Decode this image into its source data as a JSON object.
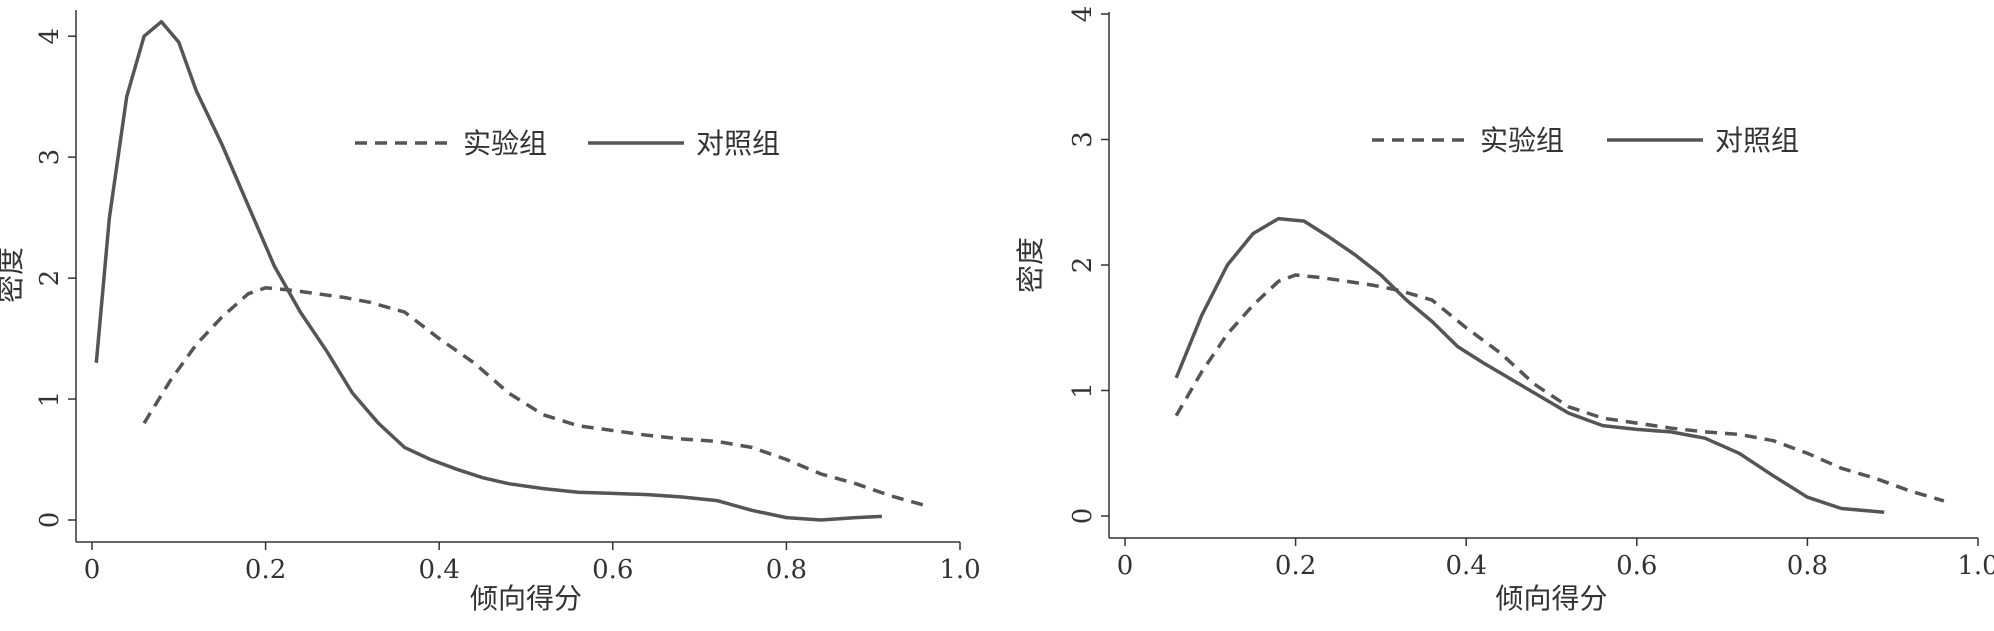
{
  "chart_data": [
    {
      "type": "line",
      "xlabel": "倾向得分",
      "ylabel": "密度",
      "xlim": [
        0,
        1.0
      ],
      "ylim": [
        0,
        4.2
      ],
      "xticks": [
        "0",
        "0.2",
        "0.4",
        "0.6",
        "0.8",
        "1.0"
      ],
      "yticks": [
        "0",
        "1",
        "2",
        "3",
        "4"
      ],
      "legend_position": "top-right",
      "grid": false,
      "series": [
        {
          "name": "实验组",
          "style": "dashed",
          "color": "#555555",
          "x": [
            0.06,
            0.09,
            0.12,
            0.15,
            0.18,
            0.2,
            0.23,
            0.26,
            0.29,
            0.32,
            0.36,
            0.4,
            0.44,
            0.48,
            0.52,
            0.56,
            0.6,
            0.64,
            0.68,
            0.72,
            0.76,
            0.8,
            0.84,
            0.88,
            0.92,
            0.96
          ],
          "y": [
            0.8,
            1.15,
            1.45,
            1.68,
            1.87,
            1.92,
            1.9,
            1.87,
            1.84,
            1.8,
            1.72,
            1.5,
            1.3,
            1.05,
            0.87,
            0.78,
            0.74,
            0.7,
            0.67,
            0.65,
            0.6,
            0.5,
            0.38,
            0.3,
            0.2,
            0.12
          ]
        },
        {
          "name": "对照组",
          "style": "solid",
          "color": "#555555",
          "x": [
            0.005,
            0.02,
            0.04,
            0.06,
            0.08,
            0.1,
            0.12,
            0.15,
            0.18,
            0.21,
            0.24,
            0.27,
            0.3,
            0.33,
            0.36,
            0.39,
            0.42,
            0.45,
            0.48,
            0.52,
            0.56,
            0.6,
            0.64,
            0.68,
            0.72,
            0.76,
            0.8,
            0.84,
            0.88,
            0.91
          ],
          "y": [
            1.3,
            2.5,
            3.5,
            4.0,
            4.12,
            3.95,
            3.55,
            3.1,
            2.6,
            2.1,
            1.72,
            1.4,
            1.05,
            0.8,
            0.6,
            0.5,
            0.42,
            0.35,
            0.3,
            0.26,
            0.23,
            0.22,
            0.21,
            0.19,
            0.16,
            0.08,
            0.02,
            0.0,
            0.02,
            0.03
          ]
        }
      ]
    },
    {
      "type": "line",
      "xlabel": "倾向得分",
      "ylabel": "密度",
      "xlim": [
        0,
        1.0
      ],
      "ylim": [
        0,
        4
      ],
      "xticks": [
        "0",
        "0.2",
        "0.4",
        "0.6",
        "0.8",
        "1.0"
      ],
      "yticks": [
        "0",
        "1",
        "2",
        "3",
        "4"
      ],
      "legend_position": "top-right",
      "grid": false,
      "series": [
        {
          "name": "实验组",
          "style": "dashed",
          "color": "#555555",
          "x": [
            0.06,
            0.09,
            0.12,
            0.15,
            0.18,
            0.2,
            0.23,
            0.26,
            0.29,
            0.32,
            0.36,
            0.4,
            0.44,
            0.48,
            0.52,
            0.56,
            0.6,
            0.64,
            0.68,
            0.72,
            0.76,
            0.8,
            0.84,
            0.88,
            0.92,
            0.96
          ],
          "y": [
            0.8,
            1.15,
            1.45,
            1.68,
            1.87,
            1.92,
            1.9,
            1.87,
            1.84,
            1.8,
            1.72,
            1.5,
            1.3,
            1.05,
            0.87,
            0.78,
            0.74,
            0.7,
            0.67,
            0.65,
            0.6,
            0.5,
            0.38,
            0.3,
            0.2,
            0.12
          ]
        },
        {
          "name": "对照组",
          "style": "solid",
          "color": "#555555",
          "x": [
            0.06,
            0.09,
            0.12,
            0.15,
            0.18,
            0.21,
            0.24,
            0.27,
            0.3,
            0.33,
            0.36,
            0.39,
            0.42,
            0.45,
            0.48,
            0.52,
            0.56,
            0.6,
            0.64,
            0.68,
            0.72,
            0.76,
            0.8,
            0.84,
            0.89
          ],
          "y": [
            1.1,
            1.6,
            2.0,
            2.25,
            2.37,
            2.35,
            2.22,
            2.08,
            1.92,
            1.72,
            1.55,
            1.35,
            1.22,
            1.1,
            0.98,
            0.82,
            0.72,
            0.69,
            0.67,
            0.62,
            0.5,
            0.32,
            0.15,
            0.06,
            0.03
          ]
        }
      ]
    }
  ]
}
